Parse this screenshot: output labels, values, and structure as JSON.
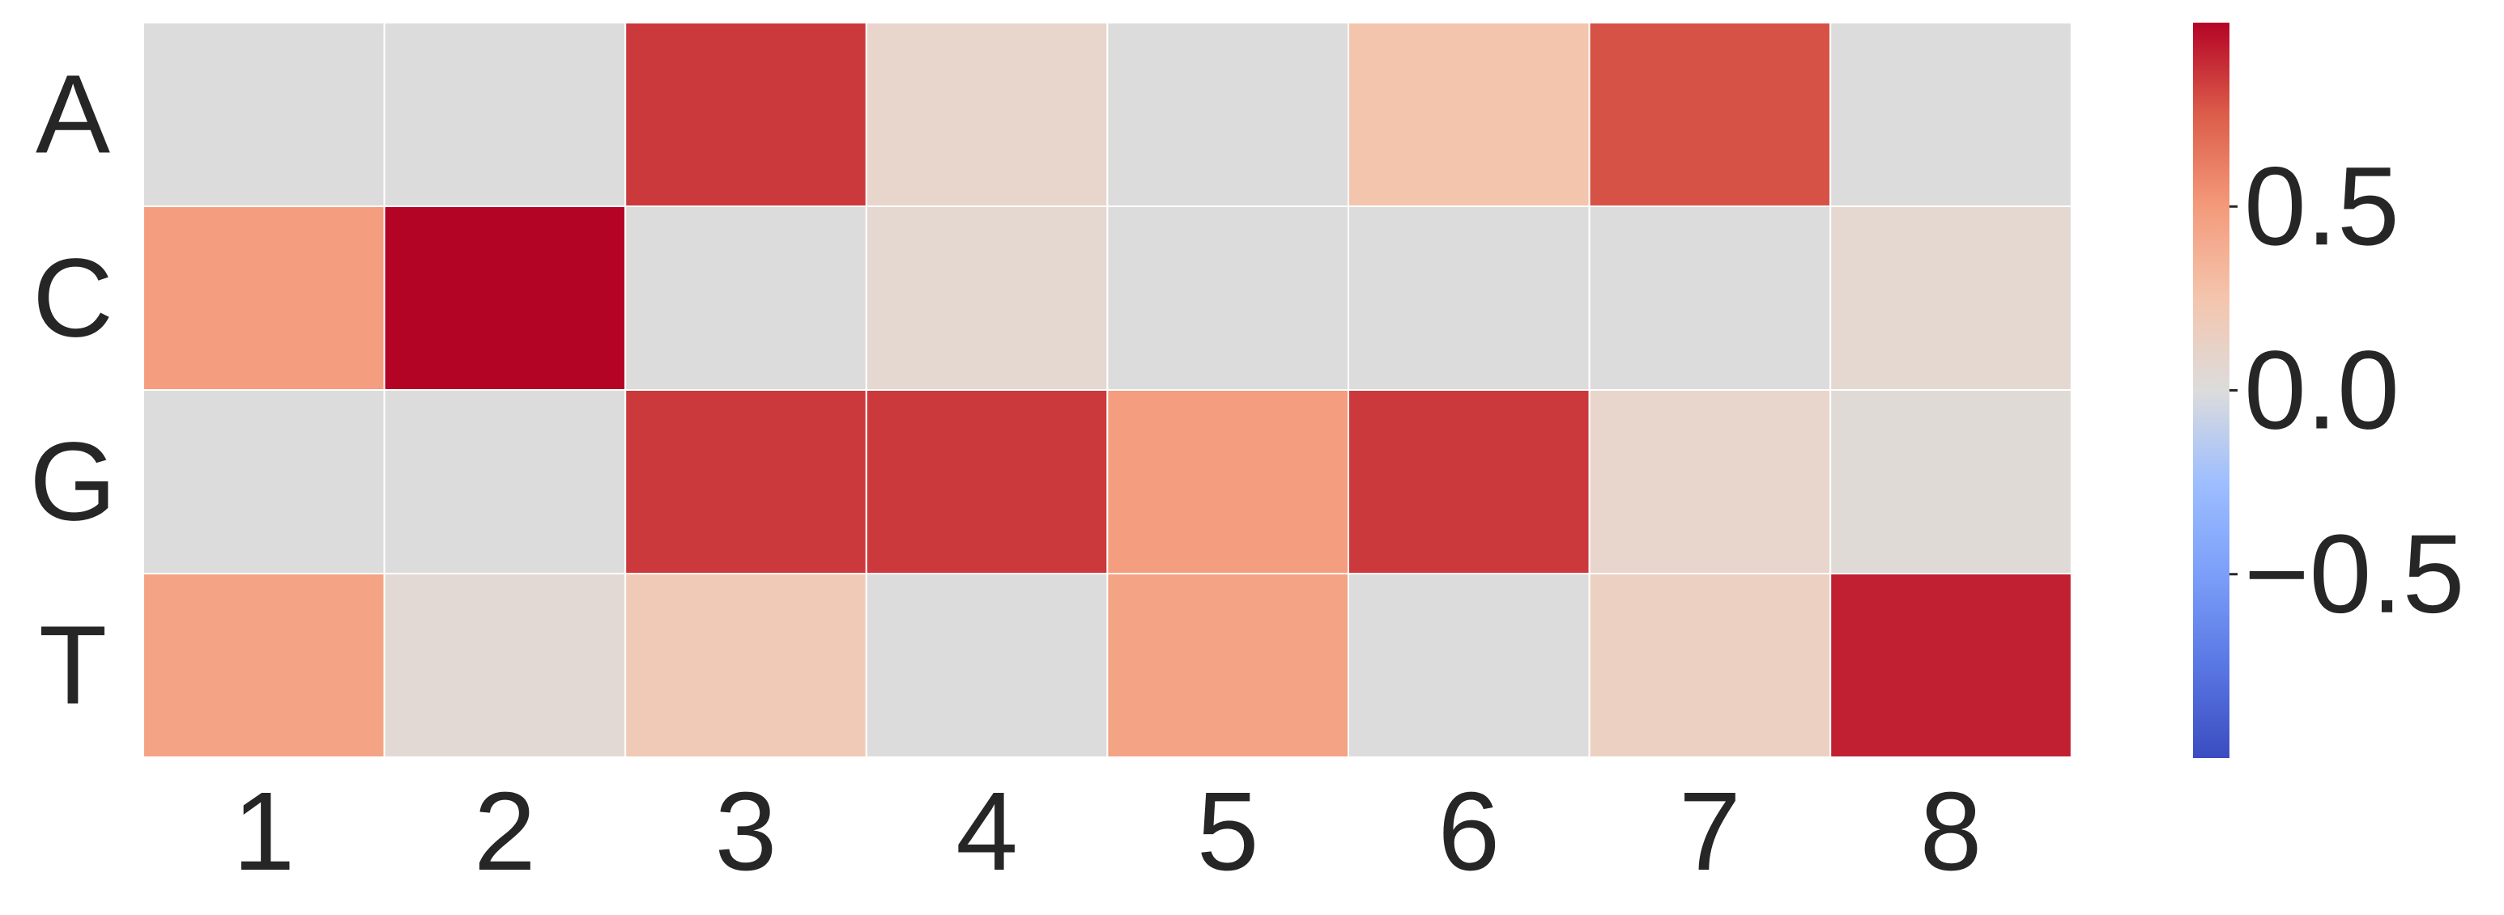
{
  "chart_data": {
    "type": "heatmap",
    "title": "",
    "xlabel": "",
    "ylabel": "",
    "x_categories": [
      "1",
      "2",
      "3",
      "4",
      "5",
      "6",
      "7",
      "8"
    ],
    "y_categories": [
      "A",
      "C",
      "G",
      "T"
    ],
    "values": [
      [
        0.0,
        0.0,
        0.85,
        0.15,
        0.0,
        0.25,
        0.78,
        0.0
      ],
      [
        0.48,
        1.0,
        0.0,
        0.1,
        0.0,
        0.0,
        0.0,
        0.1
      ],
      [
        0.0,
        0.0,
        0.85,
        0.85,
        0.48,
        0.85,
        0.15,
        0.05
      ],
      [
        0.45,
        0.07,
        0.22,
        0.0,
        0.45,
        0.0,
        0.18,
        0.92
      ]
    ],
    "colormap": "coolwarm",
    "vmin": -1,
    "vmax": 1,
    "colorbar": {
      "ticks": [
        0.5,
        0.0,
        -0.5
      ],
      "tick_labels": [
        "0.5",
        "0.0",
        "−0.5"
      ],
      "position": "right"
    },
    "grid": false,
    "cell_border_color": "#ffffff"
  }
}
